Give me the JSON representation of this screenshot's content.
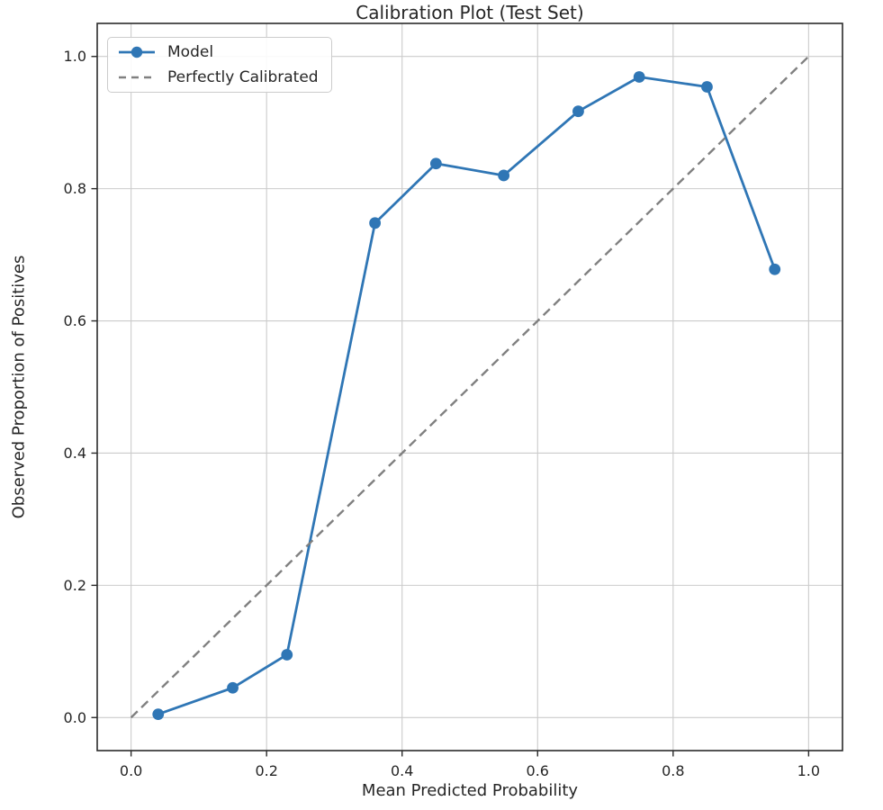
{
  "figure": {
    "title": "Calibration Plot (Test Set)"
  },
  "chart_data": {
    "type": "line",
    "title": "Calibration Plot (Test Set)",
    "xlabel": "Mean Predicted Probability",
    "ylabel": "Observed Proportion of Positives",
    "xlim": [
      -0.05,
      1.05
    ],
    "ylim": [
      -0.05,
      1.05
    ],
    "xticks": [
      0.0,
      0.2,
      0.4,
      0.6,
      0.8,
      1.0
    ],
    "yticks": [
      0.0,
      0.2,
      0.4,
      0.6,
      0.8,
      1.0
    ],
    "grid": true,
    "legend_position": "upper-left",
    "series": [
      {
        "name": "Model",
        "type": "line",
        "marker": "circle",
        "line_style": "solid",
        "color": "#2f76b5",
        "x": [
          0.04,
          0.15,
          0.23,
          0.36,
          0.45,
          0.55,
          0.66,
          0.75,
          0.85,
          0.95
        ],
        "y": [
          0.005,
          0.045,
          0.095,
          0.748,
          0.838,
          0.82,
          0.917,
          0.969,
          0.954,
          0.678
        ]
      },
      {
        "name": "Perfectly Calibrated",
        "type": "line",
        "marker": "none",
        "line_style": "dashed",
        "color": "#808080",
        "x": [
          0.0,
          1.0
        ],
        "y": [
          0.0,
          1.0
        ]
      }
    ],
    "style": {
      "grid_color": "#cbcbcb",
      "spine_color": "#2b2b2b",
      "tick_color": "#2b2b2b",
      "text_color": "#262626",
      "background": "#ffffff",
      "tick_label_format_decimals": 1
    }
  }
}
